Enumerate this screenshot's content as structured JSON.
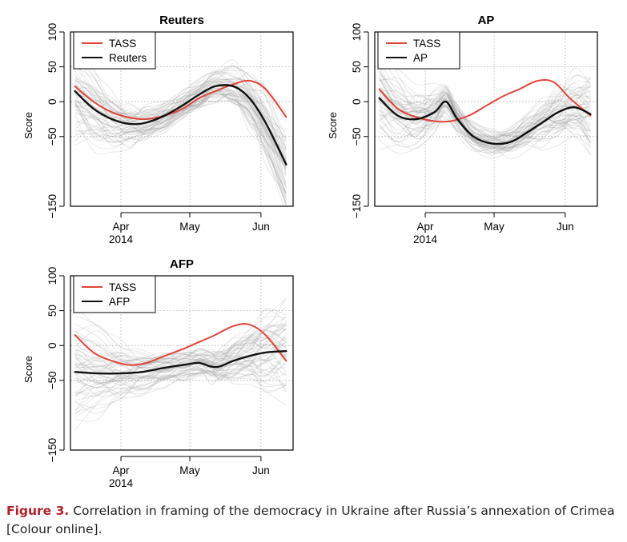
{
  "caption": {
    "label": "Figure 3.",
    "text": " Correlation in framing of the democracy in Ukraine after Russia’s annexation of Crimea [Colour online]."
  },
  "colors": {
    "tass": "#e0453a",
    "agency": "#111111",
    "samples": "#9a9a9a"
  },
  "chart_data": [
    {
      "type": "line",
      "title": "Reuters",
      "ylabel": "Score",
      "ylim": [
        -150,
        100
      ],
      "yticks": [
        -150,
        -50,
        0,
        50,
        100
      ],
      "xlim": [
        "2014-03-10",
        "2014-06-15"
      ],
      "xticks": [
        {
          "date": "2014-04-01",
          "label": "Apr",
          "sublabel": "2014"
        },
        {
          "date": "2014-05-01",
          "label": "May"
        },
        {
          "date": "2014-06-01",
          "label": "Jun"
        }
      ],
      "legend": {
        "position": "top-left",
        "entries": [
          "TASS",
          "Reuters"
        ]
      },
      "grid": true,
      "series": [
        {
          "name": "TASS",
          "x": [
            "2014-03-12",
            "2014-03-20",
            "2014-03-28",
            "2014-04-05",
            "2014-04-12",
            "2014-04-20",
            "2014-04-28",
            "2014-05-05",
            "2014-05-12",
            "2014-05-20",
            "2014-05-27",
            "2014-06-03",
            "2014-06-12"
          ],
          "y": [
            22,
            0,
            -15,
            -23,
            -25,
            -20,
            -10,
            5,
            15,
            25,
            30,
            18,
            -22
          ]
        },
        {
          "name": "Reuters",
          "x": [
            "2014-03-12",
            "2014-03-20",
            "2014-03-28",
            "2014-04-05",
            "2014-04-12",
            "2014-04-20",
            "2014-04-28",
            "2014-05-05",
            "2014-05-12",
            "2014-05-20",
            "2014-05-27",
            "2014-06-03",
            "2014-06-12"
          ],
          "y": [
            15,
            -10,
            -25,
            -32,
            -30,
            -20,
            -5,
            10,
            22,
            22,
            5,
            -30,
            -90
          ]
        }
      ]
    },
    {
      "type": "line",
      "title": "AP",
      "ylabel": "Score",
      "ylim": [
        -150,
        100
      ],
      "yticks": [
        -150,
        -50,
        0,
        50,
        100
      ],
      "xlim": [
        "2014-03-10",
        "2014-06-15"
      ],
      "xticks": [
        {
          "date": "2014-04-01",
          "label": "Apr",
          "sublabel": "2014"
        },
        {
          "date": "2014-05-01",
          "label": "May"
        },
        {
          "date": "2014-06-01",
          "label": "Jun"
        }
      ],
      "legend": {
        "position": "top-left",
        "entries": [
          "TASS",
          "AP"
        ]
      },
      "grid": true,
      "series": [
        {
          "name": "TASS",
          "x": [
            "2014-03-12",
            "2014-03-20",
            "2014-03-28",
            "2014-04-05",
            "2014-04-12",
            "2014-04-20",
            "2014-04-28",
            "2014-05-05",
            "2014-05-12",
            "2014-05-20",
            "2014-05-27",
            "2014-06-03",
            "2014-06-12"
          ],
          "y": [
            18,
            -10,
            -22,
            -28,
            -28,
            -20,
            -5,
            8,
            18,
            30,
            28,
            5,
            -20
          ]
        },
        {
          "name": "AP",
          "x": [
            "2014-03-12",
            "2014-03-20",
            "2014-03-28",
            "2014-04-05",
            "2014-04-10",
            "2014-04-15",
            "2014-04-22",
            "2014-04-30",
            "2014-05-08",
            "2014-05-15",
            "2014-05-22",
            "2014-05-29",
            "2014-06-05",
            "2014-06-12"
          ],
          "y": [
            5,
            -20,
            -25,
            -15,
            0,
            -25,
            -50,
            -60,
            -58,
            -45,
            -30,
            -15,
            -8,
            -18
          ]
        }
      ]
    },
    {
      "type": "line",
      "title": "AFP",
      "ylabel": "Score",
      "ylim": [
        -150,
        100
      ],
      "yticks": [
        -150,
        -50,
        0,
        50,
        100
      ],
      "xlim": [
        "2014-03-10",
        "2014-06-15"
      ],
      "xticks": [
        {
          "date": "2014-04-01",
          "label": "Apr",
          "sublabel": "2014"
        },
        {
          "date": "2014-05-01",
          "label": "May"
        },
        {
          "date": "2014-06-01",
          "label": "Jun"
        }
      ],
      "legend": {
        "position": "top-left",
        "entries": [
          "TASS",
          "AFP"
        ]
      },
      "grid": true,
      "series": [
        {
          "name": "TASS",
          "x": [
            "2014-03-12",
            "2014-03-20",
            "2014-03-28",
            "2014-04-05",
            "2014-04-12",
            "2014-04-20",
            "2014-04-28",
            "2014-05-05",
            "2014-05-12",
            "2014-05-20",
            "2014-05-27",
            "2014-06-03",
            "2014-06-12"
          ],
          "y": [
            15,
            -10,
            -22,
            -28,
            -25,
            -15,
            -5,
            5,
            15,
            28,
            30,
            15,
            -22
          ]
        },
        {
          "name": "AFP",
          "x": [
            "2014-03-12",
            "2014-03-22",
            "2014-04-01",
            "2014-04-10",
            "2014-04-20",
            "2014-04-28",
            "2014-05-05",
            "2014-05-10",
            "2014-05-14",
            "2014-05-20",
            "2014-05-27",
            "2014-06-03",
            "2014-06-12"
          ],
          "y": [
            -38,
            -40,
            -40,
            -38,
            -32,
            -28,
            -25,
            -30,
            -30,
            -22,
            -15,
            -10,
            -8
          ]
        }
      ]
    }
  ]
}
